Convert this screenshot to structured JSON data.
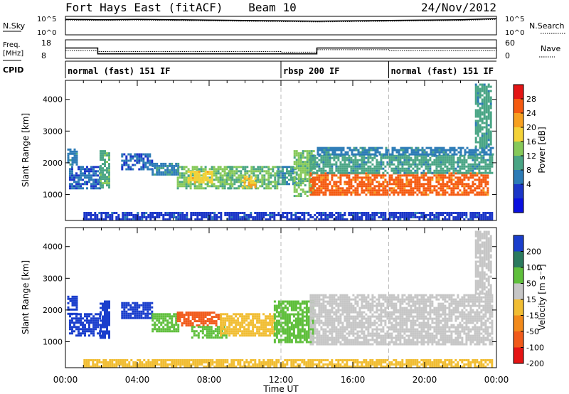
{
  "header": {
    "station": "Fort Hays East (fitACF)",
    "beam": "Beam 10",
    "date": "24/Nov/2012"
  },
  "top_panels": {
    "nsky_label": "N.Sky",
    "nsearch_label": "N.Search",
    "freq_label_1": "Freq.",
    "freq_label_2": "[MHz]",
    "nave_label": "Nave",
    "cpid_label": "CPID",
    "noise_ticks_left": [
      "10^5",
      "10^0"
    ],
    "noise_ticks_right": [
      "10^5",
      "10^0"
    ],
    "freq_ticks": [
      "18",
      "8"
    ],
    "nave_ticks": [
      "60",
      "0"
    ]
  },
  "cpid": {
    "segments": [
      {
        "start_hour": 0,
        "label": "normal (fast) 151 IF"
      },
      {
        "start_hour": 12,
        "label": "rbsp 200 IF"
      },
      {
        "start_hour": 18,
        "label": "normal (fast) 151 IF"
      }
    ]
  },
  "chart_data": [
    {
      "type": "line",
      "name": "noise",
      "x_hours": [
        0,
        2,
        4,
        6,
        8,
        10,
        12,
        14,
        16,
        18,
        20,
        22,
        24
      ],
      "series": [
        {
          "name": "N.Sky",
          "values_log10": [
            4.2,
            4.1,
            4.2,
            4.1,
            4.0,
            3.9,
            3.8,
            3.7,
            3.8,
            3.9,
            4.0,
            4.1,
            4.4
          ]
        },
        {
          "name": "N.Search",
          "values_log10": [
            4.0,
            3.9,
            4.0,
            3.9,
            3.8,
            3.7,
            3.6,
            3.5,
            3.6,
            3.7,
            3.8,
            3.9,
            4.2
          ]
        }
      ]
    },
    {
      "type": "line",
      "name": "frequency-nave",
      "freq_steps": [
        [
          0,
          1.8,
          13.6
        ],
        [
          1.8,
          14,
          10.4
        ],
        [
          14,
          24,
          13.6
        ]
      ],
      "nave_steps": [
        [
          0,
          1.8,
          25
        ],
        [
          1.8,
          12,
          22
        ],
        [
          12,
          14,
          20
        ],
        [
          14,
          18,
          28
        ],
        [
          18,
          24,
          25
        ]
      ],
      "ylim_freq": [
        8,
        18
      ],
      "ylim_nave": [
        0,
        60
      ]
    },
    {
      "type": "heatmap",
      "title": "Power",
      "ylabel": "Slant Range [km]",
      "xlim_hours": [
        0,
        24
      ],
      "ylim": [
        180,
        4600
      ],
      "y_ticks": [
        1000,
        2000,
        3000,
        4000
      ],
      "colorbar_label": "Power [dB]",
      "colorbar_ticks": [
        "28",
        "24",
        "20",
        "16",
        "12",
        "8",
        "4"
      ],
      "colorbar_colors": [
        "#e31515",
        "#f55a10",
        "#f7a020",
        "#f4d238",
        "#86c95a",
        "#4aa585",
        "#2c7bb6",
        "#1b36c8",
        "#0a10e0"
      ],
      "regions": [
        {
          "t0": 0.1,
          "t1": 0.6,
          "r0": 1950,
          "r1": 2450,
          "value": 8
        },
        {
          "t0": 0.2,
          "t1": 1.9,
          "r0": 1200,
          "r1": 1900,
          "value": 6
        },
        {
          "t0": 1.9,
          "t1": 2.4,
          "r0": 1200,
          "r1": 2400,
          "value": 12
        },
        {
          "t0": 3.1,
          "t1": 4.8,
          "r0": 1800,
          "r1": 2300,
          "value": 6
        },
        {
          "t0": 4.8,
          "t1": 6.3,
          "r0": 1650,
          "r1": 2000,
          "value": 8
        },
        {
          "t0": 6.2,
          "t1": 9.2,
          "r0": 1200,
          "r1": 1900,
          "value": 14
        },
        {
          "t0": 6.8,
          "t1": 8.2,
          "r0": 1400,
          "r1": 1750,
          "value": 19
        },
        {
          "t0": 9.0,
          "t1": 11.8,
          "r0": 1200,
          "r1": 1900,
          "value": 13
        },
        {
          "t0": 9.8,
          "t1": 10.6,
          "r0": 1250,
          "r1": 1600,
          "value": 20
        },
        {
          "t0": 11.8,
          "t1": 12.8,
          "r0": 1300,
          "r1": 1900,
          "value": 10
        },
        {
          "t0": 12.7,
          "t1": 13.8,
          "r0": 950,
          "r1": 2400,
          "value": 14
        },
        {
          "t0": 13.6,
          "t1": 23.5,
          "r0": 1000,
          "r1": 1700,
          "value": 26
        },
        {
          "t0": 13.6,
          "t1": 23.8,
          "r0": 1700,
          "r1": 2250,
          "value": 11
        },
        {
          "t0": 14.0,
          "t1": 23.8,
          "r0": 2250,
          "r1": 2500,
          "value": 8
        },
        {
          "t0": 22.8,
          "t1": 23.7,
          "r0": 2500,
          "r1": 4500,
          "value": 11
        },
        {
          "t0": 1.0,
          "t1": 23.8,
          "r0": 200,
          "r1": 450,
          "value": 4
        }
      ]
    },
    {
      "type": "heatmap",
      "title": "Velocity",
      "ylabel": "Slant Range [km]",
      "xlabel": "Time UT",
      "xlim_hours": [
        0,
        24
      ],
      "ylim": [
        180,
        4600
      ],
      "y_ticks": [
        1000,
        2000,
        3000,
        4000
      ],
      "x_ticks": [
        "00:00",
        "04:00",
        "08:00",
        "12:00",
        "16:00",
        "20:00",
        "00:00"
      ],
      "colorbar_label": "Velocity [m s⁻¹]",
      "colorbar_ticks": [
        "200",
        "100",
        "50",
        "15",
        "-15",
        "-50",
        "-100",
        "-200"
      ],
      "colorbar_colors": [
        "#1a3ecc",
        "#2b7a5e",
        "#5fbf3c",
        "#c6c6c6",
        "#f1bd33",
        "#f28a1b",
        "#f15a1a",
        "#e51414"
      ],
      "regions": [
        {
          "t0": 0.1,
          "t1": 0.6,
          "r0": 1900,
          "r1": 2450,
          "value": 220
        },
        {
          "t0": 0.2,
          "t1": 1.9,
          "r0": 1200,
          "r1": 1900,
          "value": 200
        },
        {
          "t0": 1.9,
          "t1": 2.4,
          "r0": 1100,
          "r1": 2300,
          "value": 210
        },
        {
          "t0": 3.1,
          "t1": 4.8,
          "r0": 1750,
          "r1": 2250,
          "value": 220
        },
        {
          "t0": 4.8,
          "t1": 6.3,
          "r0": 1300,
          "r1": 1900,
          "value": 60
        },
        {
          "t0": 6.2,
          "t1": 8.6,
          "r0": 1500,
          "r1": 1950,
          "value": -130
        },
        {
          "t0": 7.0,
          "t1": 9.0,
          "r0": 1100,
          "r1": 1500,
          "value": 40
        },
        {
          "t0": 8.6,
          "t1": 11.6,
          "r0": 1200,
          "r1": 1900,
          "value": -30
        },
        {
          "t0": 11.6,
          "t1": 13.8,
          "r0": 1000,
          "r1": 2300,
          "value": 60
        },
        {
          "t0": 13.6,
          "t1": 23.8,
          "r0": 950,
          "r1": 2500,
          "value": 0
        },
        {
          "t0": 22.8,
          "t1": 23.7,
          "r0": 2500,
          "r1": 4500,
          "value": 5
        },
        {
          "t0": 1.0,
          "t1": 23.8,
          "r0": 200,
          "r1": 450,
          "value": -25
        }
      ]
    }
  ]
}
